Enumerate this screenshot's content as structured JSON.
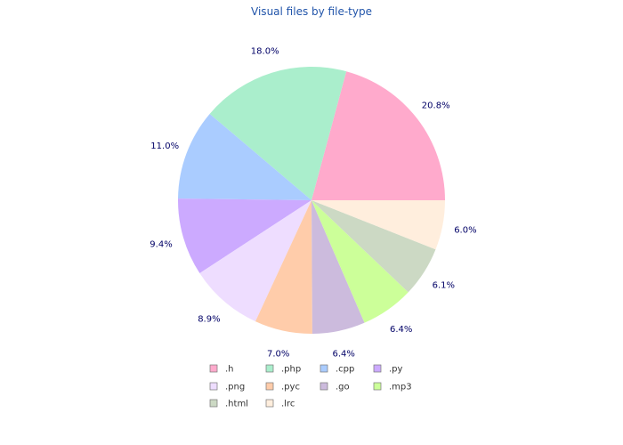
{
  "chart_data": {
    "type": "pie",
    "title": "Visual files by file-type",
    "slices": [
      {
        "label": ".h",
        "value": 20.8,
        "pct_label": "20.8%",
        "color": "#ffaacc"
      },
      {
        "label": ".php",
        "value": 18.0,
        "pct_label": "18.0%",
        "color": "#aaeecc"
      },
      {
        "label": ".cpp",
        "value": 11.0,
        "pct_label": "11.0%",
        "color": "#aaccff"
      },
      {
        "label": ".py",
        "value": 9.4,
        "pct_label": "9.4%",
        "color": "#ccaaff"
      },
      {
        "label": ".png",
        "value": 8.9,
        "pct_label": "8.9%",
        "color": "#eeddff"
      },
      {
        "label": ".pyc",
        "value": 7.0,
        "pct_label": "7.0%",
        "color": "#ffccaa"
      },
      {
        "label": ".go",
        "value": 6.4,
        "pct_label": "6.4%",
        "color": "#ccbbdd"
      },
      {
        "label": ".mp3",
        "value": 6.4,
        "pct_label": "6.4%",
        "color": "#ccff99"
      },
      {
        "label": ".html",
        "value": 6.1,
        "pct_label": "6.1%",
        "color": "#ccd9c4"
      },
      {
        "label": ".lrc",
        "value": 6.0,
        "pct_label": "6.0%",
        "color": "#ffeedd"
      }
    ],
    "legend_placement": "bottom"
  }
}
